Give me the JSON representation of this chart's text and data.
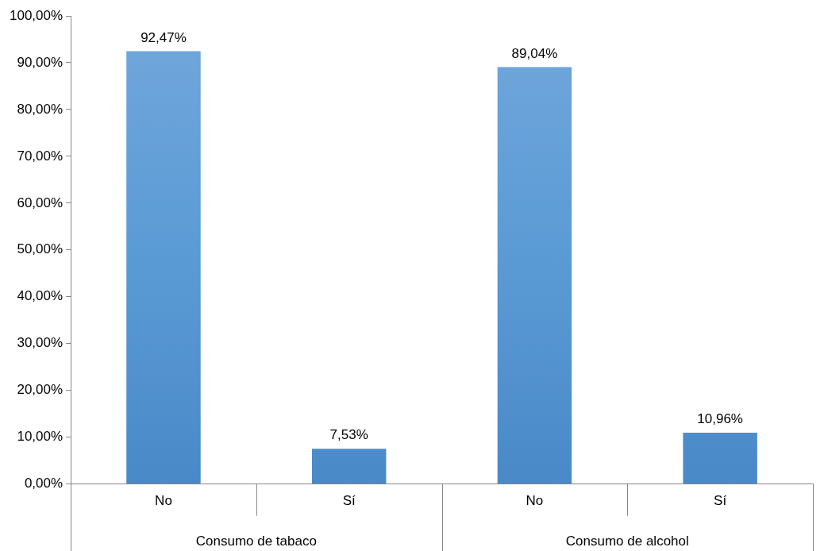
{
  "chart_data": {
    "type": "bar",
    "categories": [
      "No",
      "Sí",
      "No",
      "Sí"
    ],
    "values": [
      92.47,
      7.53,
      89.04,
      10.96
    ],
    "color": "#5b9bd5",
    "value_labels": [
      "92,47%",
      "7,53%",
      "89,04%",
      "10,96%"
    ],
    "ylim": [
      0,
      100
    ],
    "yticks": [
      {
        "value": 0,
        "label": "0,00%"
      },
      {
        "value": 10,
        "label": "10,00%"
      },
      {
        "value": 20,
        "label": "20,00%"
      },
      {
        "value": 30,
        "label": "30,00%"
      },
      {
        "value": 40,
        "label": "40,00%"
      },
      {
        "value": 50,
        "label": "50,00%"
      },
      {
        "value": 60,
        "label": "60,00%"
      },
      {
        "value": 70,
        "label": "70,00%"
      },
      {
        "value": 80,
        "label": "80,00%"
      },
      {
        "value": 90,
        "label": "90,00%"
      },
      {
        "value": 100,
        "label": "100,00%"
      }
    ],
    "annotations": [
      "Consumo de tabaco",
      "Consumo de alcohol"
    ],
    "grid": false,
    "legend": false
  }
}
